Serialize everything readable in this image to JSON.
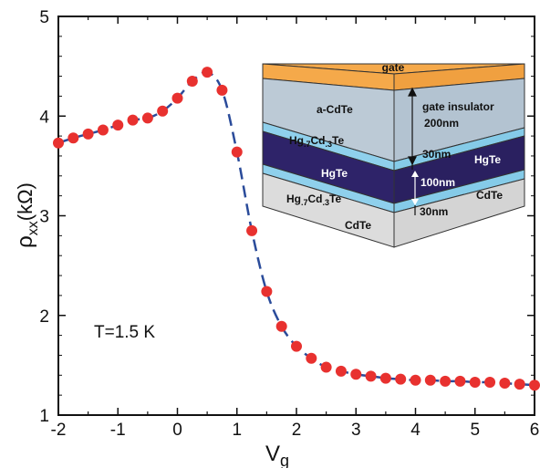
{
  "chart_data": {
    "type": "scatter",
    "xlabel_main": "V",
    "xlabel_sub": "g",
    "ylabel_main": "ρ",
    "ylabel_sub": "xx",
    "ylabel_unit": "(kΩ)",
    "xlim": [
      -2,
      6
    ],
    "ylim": [
      1,
      5
    ],
    "x_ticks": [
      "-2",
      "-1",
      "0",
      "1",
      "2",
      "3",
      "4",
      "5",
      "6"
    ],
    "y_ticks": [
      "1",
      "2",
      "3",
      "4",
      "5"
    ],
    "annotation": "T=1.5 K",
    "marker_color": "#e8312f",
    "line_color": "#2a4b9a",
    "series": [
      {
        "x": [
          -2.0,
          -1.75,
          -1.5,
          -1.25,
          -1.0,
          -0.75,
          -0.5,
          -0.25,
          0.0,
          0.25,
          0.5,
          0.75,
          1.0,
          1.25,
          1.5,
          1.75,
          2.0,
          2.25,
          2.5,
          2.75,
          3.0,
          3.25,
          3.5,
          3.75,
          4.0,
          4.25,
          4.5,
          4.75,
          5.0,
          5.25,
          5.5,
          5.75,
          6.0
        ],
        "y": [
          3.73,
          3.78,
          3.82,
          3.86,
          3.91,
          3.96,
          3.98,
          4.05,
          4.18,
          4.35,
          4.44,
          4.26,
          3.64,
          2.85,
          2.24,
          1.89,
          1.69,
          1.57,
          1.48,
          1.44,
          1.41,
          1.39,
          1.37,
          1.36,
          1.35,
          1.35,
          1.34,
          1.34,
          1.33,
          1.33,
          1.32,
          1.31,
          1.3
        ]
      }
    ]
  },
  "inset": {
    "colors": {
      "gate": "#f5a94a",
      "insulator": "#b9c9d6",
      "barrier": "#8fd0ec",
      "well": "#2e2369",
      "substrate": "#d9d9d9"
    },
    "gate_label": "gate",
    "a_cdte": "a-CdTe",
    "gate_insulator": "gate insulator",
    "t200": "200nm",
    "hgcdte_top_a": "Hg",
    "hgcdte_top_b": ".7",
    "hgcdte_top_c": "Cd",
    "hgcdte_top_d": ".3",
    "hgcdte_top_e": "Te",
    "t30_top": "30nm",
    "hgte_left": "HgTe",
    "hgte_right": "HgTe",
    "t100": "100nm",
    "hgcdte_bot_a": "Hg",
    "hgcdte_bot_b": ".7",
    "hgcdte_bot_c": "Cd",
    "hgcdte_bot_d": ".3",
    "hgcdte_bot_e": "Te",
    "t30_bot": "30nm",
    "cdte_right": "CdTe",
    "cdte_bottom": "CdTe"
  }
}
